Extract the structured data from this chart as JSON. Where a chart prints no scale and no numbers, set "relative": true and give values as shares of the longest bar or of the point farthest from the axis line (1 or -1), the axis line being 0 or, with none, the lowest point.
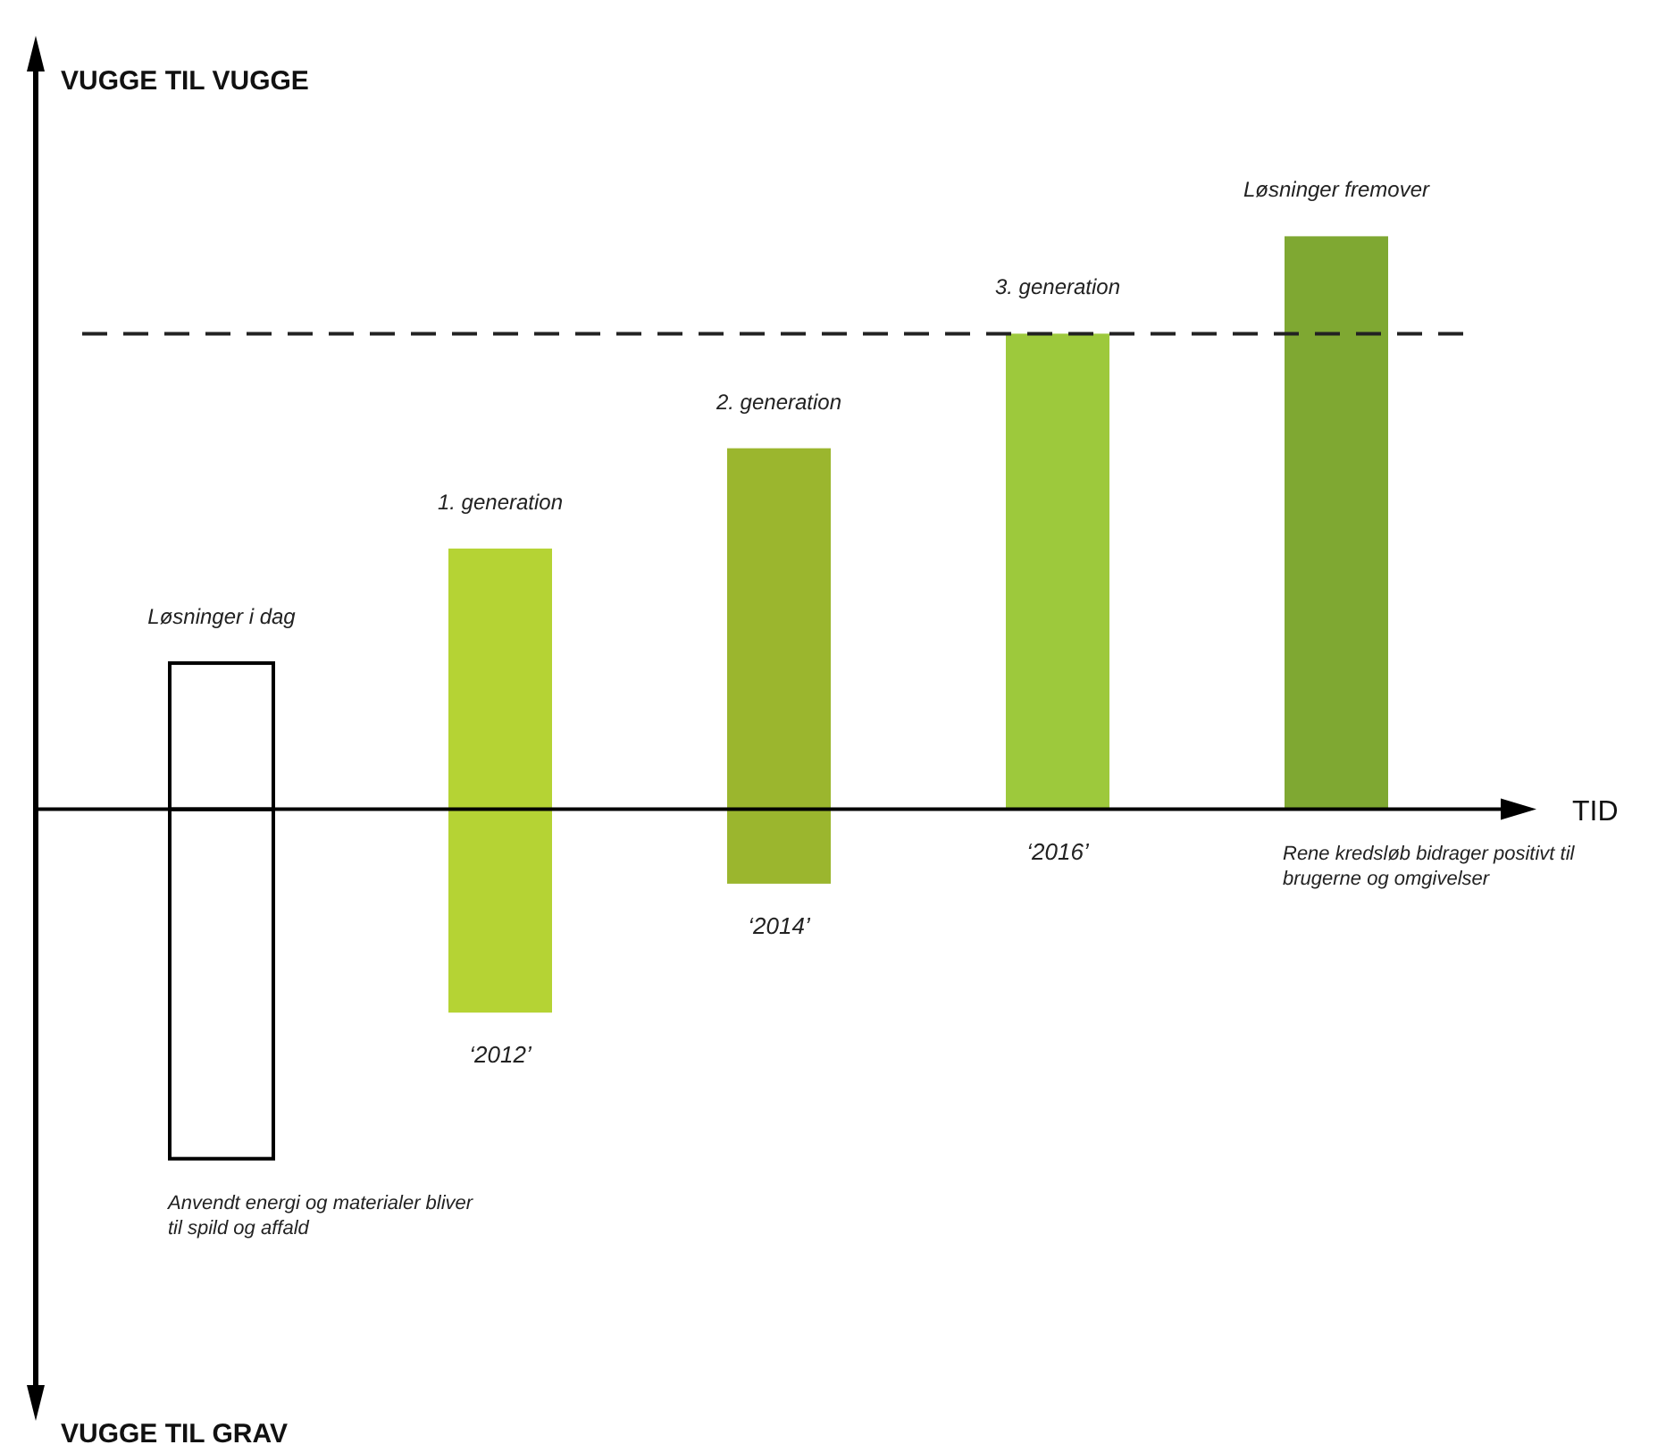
{
  "chart_data": {
    "type": "bar",
    "relative": true,
    "xlabel": "TID",
    "categories": [
      "Løsninger i dag",
      "1. generation",
      "2. generation",
      "3. generation",
      "Løsninger fremover"
    ],
    "stacked": true,
    "series": [
      {
        "values": [
          -0.61,
          -0.355,
          -0.13,
          0,
          0
        ],
        "colors": [
          "#ffffff",
          "#b5d334",
          "#9bb62e",
          "#9dc93c",
          "#7fa832"
        ]
      },
      {
        "values": [
          0.255,
          0.455,
          0.63,
          0.83,
          1
        ],
        "colors": [
          "#ffffff",
          "#b5d334",
          "#9bb62e",
          "#9dc93c",
          "#7fa832"
        ]
      }
    ],
    "ref_lines": [
      {
        "axis": "y",
        "value": 0.83,
        "color": "#222222",
        "line_style": "dashed"
      }
    ],
    "annotations": [
      "VUGGE TIL VUGGE",
      {
        "text": "Anvendt energi og materialer bliver til spild og affald",
        "x": "Løsninger i dag",
        "y": -0.61
      },
      {
        "text": "‘2012’",
        "x": "1. generation",
        "y": -0.355
      },
      {
        "text": "‘2014’",
        "x": "2. generation",
        "y": -0.13
      },
      {
        "text": "‘2016’",
        "x": "3. generation",
        "y": 0
      },
      {
        "text": "Rene kredsløb bidrager positivt til brugerne og omgivelser",
        "x": "Løsninger fremover",
        "y": 0
      },
      "VUGGE TIL GRAV"
    ]
  }
}
